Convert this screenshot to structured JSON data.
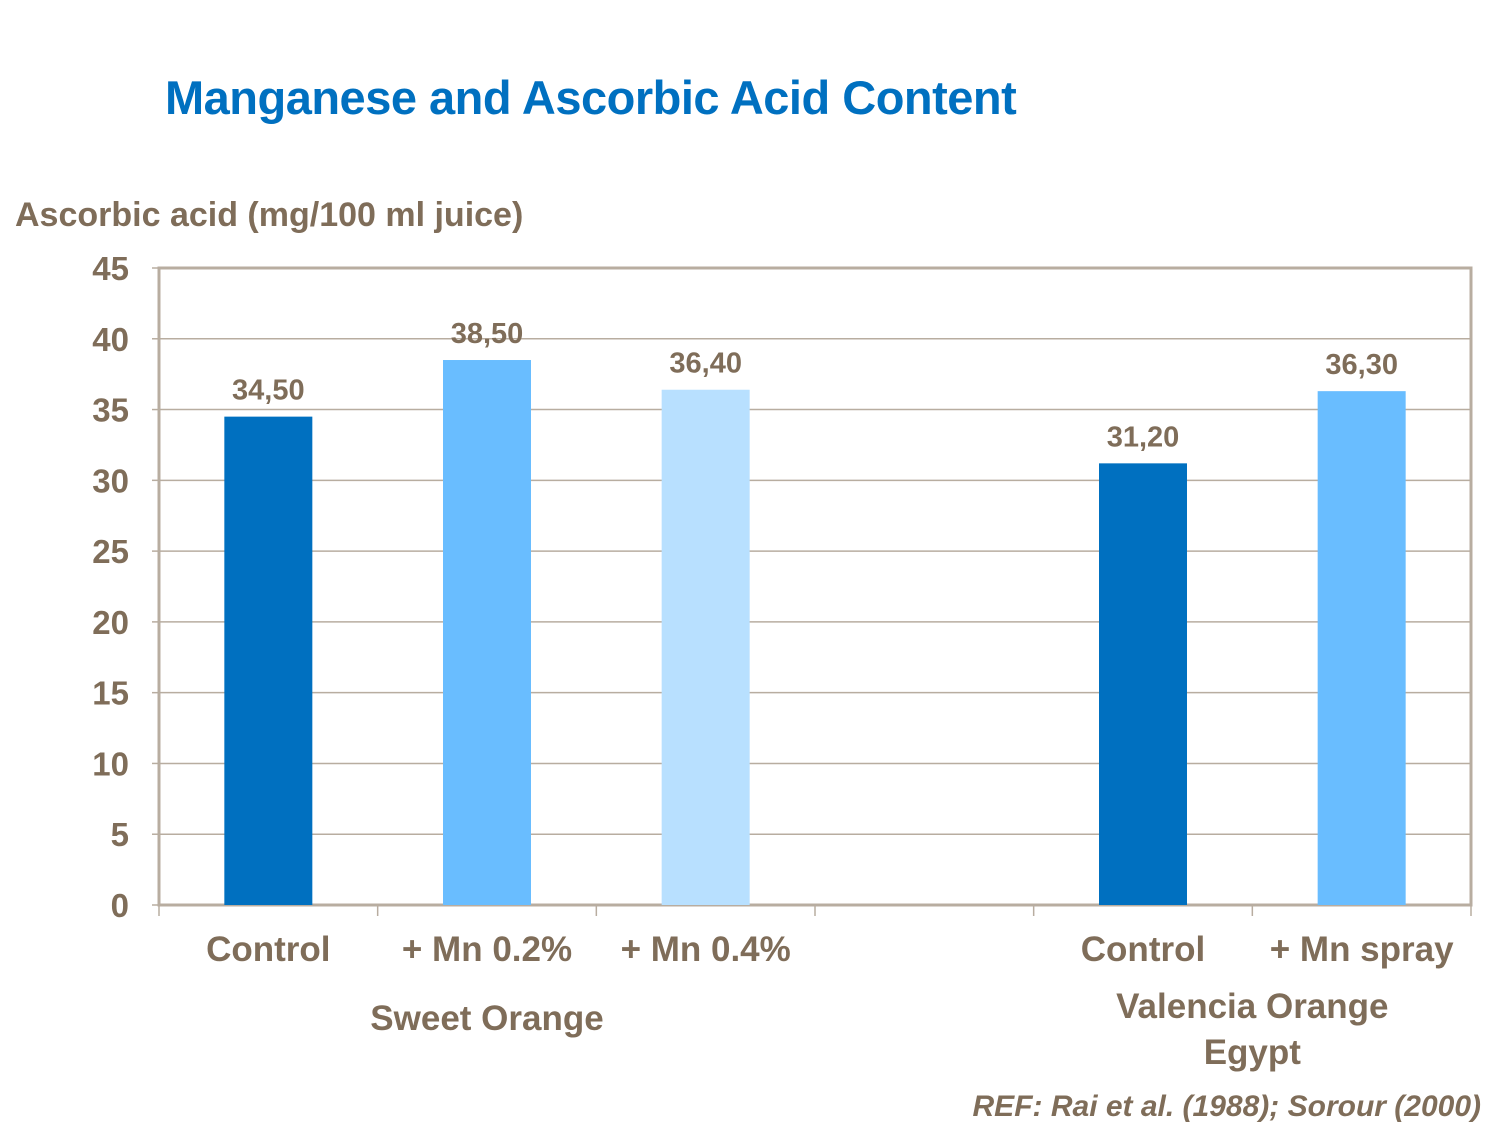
{
  "chart_data": {
    "type": "bar",
    "title": "Manganese and Ascorbic Acid Content",
    "ylabel": "Ascorbic acid (mg/100 ml juice)",
    "xlabel": "",
    "ylim": [
      0,
      45
    ],
    "yticks": [
      0,
      5,
      10,
      15,
      20,
      25,
      30,
      35,
      40,
      45
    ],
    "grid": true,
    "categories": [
      "Control",
      "+ Mn 0.2%",
      "+ Mn 0.4%",
      "",
      "Control",
      "+ Mn spray"
    ],
    "values": [
      34.5,
      38.5,
      36.4,
      null,
      31.2,
      36.3
    ],
    "data_labels": [
      "34,50",
      "38,50",
      "36,40",
      "",
      "31,20",
      "36,30"
    ],
    "bar_colors": [
      "#0070c0",
      "#69bdff",
      "#b8e0ff",
      "",
      "#0070c0",
      "#69bdff"
    ],
    "groups": [
      {
        "label": "Sweet Orange",
        "lines": [
          "Sweet Orange"
        ]
      },
      {
        "label": "Valencia Orange Egypt",
        "lines": [
          "Valencia Orange",
          "Egypt"
        ]
      }
    ],
    "reference": "REF: Rai et al. (1988); Sorour (2000)"
  },
  "colors": {
    "title": "#0070c0",
    "text": "#7f6d59",
    "grid": "#b8ada0"
  }
}
